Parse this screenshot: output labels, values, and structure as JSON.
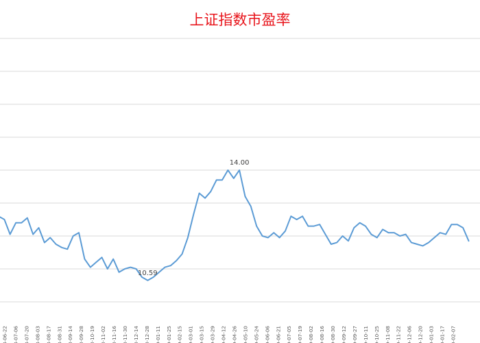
{
  "chart_data": {
    "type": "line",
    "title": "上证指数市盈率",
    "title_color": "#e8141b",
    "line_color": "#5b9bd5",
    "grid": true,
    "legend": "none",
    "ylim": [
      9.5,
      18.5
    ],
    "yticks": [
      10,
      11,
      12,
      13,
      14,
      15,
      16,
      17,
      18
    ],
    "tick_labels": [
      "2018-06-22",
      "2018-07-06",
      "2018-07-20",
      "2018-08-03",
      "2018-08-17",
      "2018-08-31",
      "2018-09-14",
      "2018-09-28",
      "2018-10-19",
      "2018-11-02",
      "2018-11-16",
      "2018-11-30",
      "2018-12-14",
      "2018-12-28",
      "2019-01-11",
      "2019-01-25",
      "2019-02-15",
      "2019-03-01",
      "2019-03-15",
      "2019-03-29",
      "2019-04-12",
      "2019-04-26",
      "2019-05-10",
      "2019-05-24",
      "2019-06-06",
      "2019-06-21",
      "2019-07-05",
      "2019-07-19",
      "2019-08-02",
      "2019-08-16",
      "2019-08-30",
      "2019-09-12",
      "2019-09-27",
      "2019-10-11",
      "2019-10-25",
      "2019-11-08",
      "2019-11-22",
      "2019-12-06",
      "2019-12-20",
      "2020-01-03",
      "2020-01-17",
      "2020-02-07"
    ],
    "series": [
      {
        "values": [
          12.6,
          12.5,
          12.05,
          12.4,
          12.4,
          12.55,
          12.05,
          12.25,
          11.8,
          11.95,
          11.75,
          11.65,
          11.6,
          12.0,
          12.1,
          11.3,
          11.05,
          11.2,
          11.35,
          11.0,
          11.3,
          10.9,
          11.0,
          11.05,
          11.0,
          10.75,
          10.65,
          10.75,
          10.9,
          11.05,
          11.1,
          11.25,
          11.45,
          11.95,
          12.65,
          13.3,
          13.15,
          13.35,
          13.7,
          13.7,
          14.0,
          13.75,
          14.0,
          13.2,
          12.9,
          12.3,
          12.0,
          11.95,
          12.1,
          11.95,
          12.15,
          12.6,
          12.5,
          12.6,
          12.3,
          12.3,
          12.35,
          12.05,
          11.75,
          11.8,
          12.0,
          11.85,
          12.25,
          12.4,
          12.3,
          12.05,
          11.95,
          12.2,
          12.1,
          12.1,
          12.0,
          12.05,
          11.8,
          11.75,
          11.7,
          11.8,
          11.95,
          12.1,
          12.05,
          12.35,
          12.35,
          12.25,
          11.85
        ],
        "annotations": [
          {
            "index": 26,
            "label": "10.59"
          },
          {
            "index": 42,
            "label": "14.00"
          }
        ]
      }
    ]
  }
}
